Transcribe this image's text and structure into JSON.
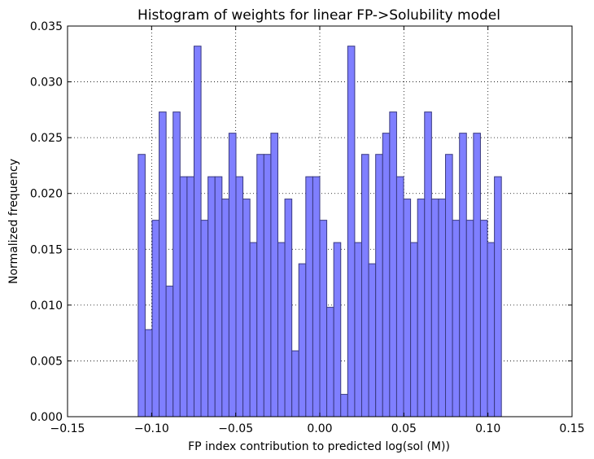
{
  "chart_data": {
    "type": "bar",
    "title": "Histogram of weights for linear FP->Solubility model",
    "xlabel": "FP index contribution to predicted log(sol (M))",
    "ylabel": "Normalized frequency",
    "xlim": [
      -0.15,
      0.15
    ],
    "ylim": [
      0,
      0.035
    ],
    "xticks": [
      "−0.15",
      "−0.10",
      "−0.05",
      "0.00",
      "0.05",
      "0.10",
      "0.15"
    ],
    "yticks": [
      "0.000",
      "0.005",
      "0.010",
      "0.015",
      "0.020",
      "0.025",
      "0.030",
      "0.035"
    ],
    "grid": true,
    "bar_color": "#7f7fff",
    "bar_edge_color": "#3a3a80",
    "bin_range": [
      -0.108,
      0.108
    ],
    "values": [
      0.0235,
      0.0078,
      0.0176,
      0.0273,
      0.0117,
      0.0273,
      0.0215,
      0.0215,
      0.0332,
      0.0176,
      0.0215,
      0.0215,
      0.0195,
      0.0254,
      0.0215,
      0.0195,
      0.0156,
      0.0235,
      0.0235,
      0.0254,
      0.0156,
      0.0195,
      0.0059,
      0.0137,
      0.0215,
      0.0215,
      0.0176,
      0.0098,
      0.0156,
      0.002,
      0.0332,
      0.0156,
      0.0235,
      0.0137,
      0.0235,
      0.0254,
      0.0273,
      0.0215,
      0.0195,
      0.0156,
      0.0195,
      0.0273,
      0.0195,
      0.0195,
      0.0235,
      0.0176,
      0.0254,
      0.0176,
      0.0254,
      0.0176,
      0.0156,
      0.0215
    ]
  }
}
